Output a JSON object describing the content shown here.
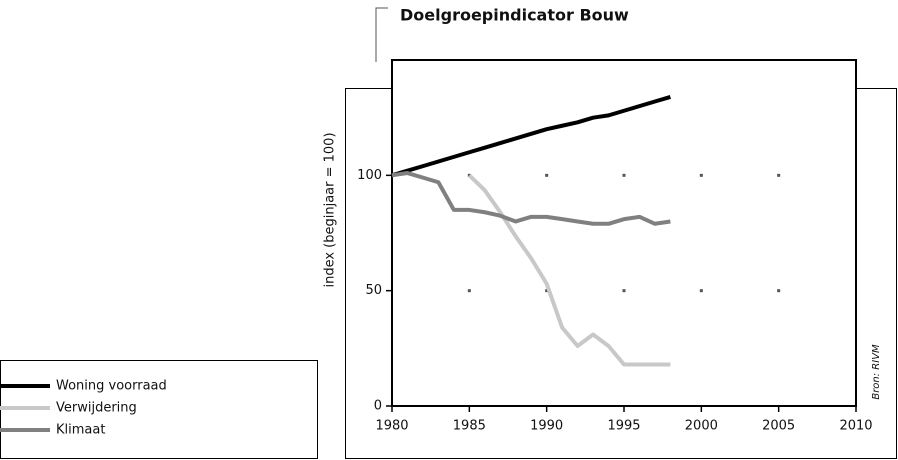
{
  "chart_data": {
    "type": "line",
    "title": "Doelgroepindicator Bouw",
    "y_label": "index (beginjaar = 100)",
    "source": "Bron: RIVM",
    "x": [
      1980,
      1981,
      1982,
      1983,
      1984,
      1985,
      1986,
      1987,
      1988,
      1989,
      1990,
      1991,
      1992,
      1993,
      1994,
      1995,
      1996,
      1997,
      1998
    ],
    "series": [
      {
        "name": "Woning voorraad",
        "color": "#000000",
        "values": [
          100,
          102,
          104,
          106,
          108,
          110,
          112,
          114,
          116,
          118,
          120,
          121.5,
          123,
          125,
          126,
          128,
          130,
          132,
          134
        ]
      },
      {
        "name": "Verwijdering",
        "color": "#c8c8c8",
        "values": [
          null,
          null,
          null,
          null,
          null,
          100,
          93.5,
          84,
          73.5,
          64,
          53,
          34,
          26,
          31,
          26,
          18,
          18,
          18,
          18
        ]
      },
      {
        "name": "Klimaat",
        "color": "#808080",
        "values": [
          100,
          101,
          99,
          97,
          85,
          85,
          84,
          82.5,
          80,
          82,
          82,
          81,
          80,
          79,
          79,
          81,
          82,
          79,
          80
        ]
      }
    ],
    "xlim": [
      1980,
      2010
    ],
    "xticks": [
      1980,
      1985,
      1990,
      1995,
      2000,
      2005,
      2010
    ],
    "ylim": [
      0,
      150
    ],
    "yticks": [
      0,
      50,
      100
    ],
    "grid": "dots",
    "legend": "bottom-left"
  }
}
